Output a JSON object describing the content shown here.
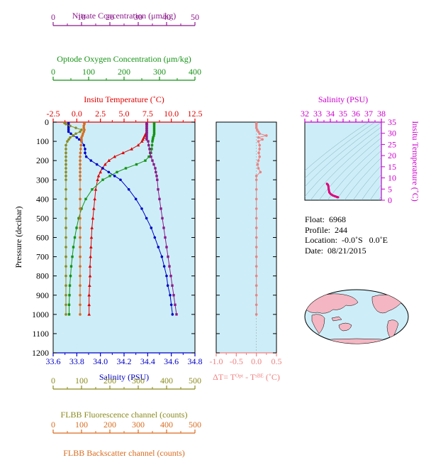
{
  "axes": {
    "nitrate": {
      "title": "Nitrate Concentration (μm/kg)",
      "ticks": [
        "0",
        "10",
        "20",
        "30",
        "40",
        "50"
      ],
      "range": [
        0,
        50
      ]
    },
    "oxygen": {
      "title": "Optode Oxygen Concentration (μm/kg)",
      "ticks": [
        "0",
        "100",
        "200",
        "300",
        "400"
      ],
      "range": [
        0,
        400
      ]
    },
    "temperature": {
      "title": "Insitu Temperature (˚C)",
      "ticks": [
        "-2.5",
        "0.0",
        "2.5",
        "5.0",
        "7.5",
        "10.0",
        "12.5"
      ],
      "range": [
        -2.5,
        12.5
      ]
    },
    "salinity": {
      "title": "Salinity (PSU)",
      "ticks": [
        "33.6",
        "33.8",
        "34.0",
        "34.2",
        "34.4",
        "34.6",
        "34.8"
      ],
      "range": [
        33.6,
        34.8
      ]
    },
    "pressure": {
      "title": "Pressure (decibar)",
      "ticks": [
        "0",
        "100",
        "200",
        "300",
        "400",
        "500",
        "600",
        "700",
        "800",
        "900",
        "1000",
        "1100",
        "1200"
      ],
      "range": [
        0,
        1200
      ]
    },
    "delta_t": {
      "title": "ΔT= Tᴼᵖᵗ - Tˢᴮᴱ (˚C)",
      "ticks": [
        "-1.0",
        "-0.5",
        "0.0",
        "0.5"
      ],
      "range": [
        -1.0,
        0.5
      ]
    },
    "fluorescence": {
      "title": "FLBB Fluorescence channel (counts)",
      "ticks": [
        "0",
        "100",
        "200",
        "300",
        "400",
        "500"
      ],
      "range": [
        0,
        500
      ]
    },
    "backscatter": {
      "title": "FLBB Backscatter channel (counts)",
      "ticks": [
        "0",
        "100",
        "200",
        "300",
        "400",
        "500"
      ],
      "range": [
        0,
        500
      ]
    },
    "ts_salinity": {
      "title": "Salinity (PSU)",
      "ticks": [
        "32",
        "33",
        "34",
        "35",
        "36",
        "37",
        "38"
      ],
      "range": [
        32,
        38
      ]
    },
    "ts_temperature": {
      "title": "Insitu Temperature (˚C)",
      "ticks": [
        "0",
        "5",
        "10",
        "15",
        "20",
        "25",
        "30",
        "35"
      ],
      "range": [
        0,
        35
      ]
    }
  },
  "info": {
    "float": "Float:  6968",
    "profile": "Profile:  244",
    "location": "Location:  -0.0˚S   0.0˚E",
    "date": "Date:  08/21/2015"
  },
  "colors": {
    "nitrate": "#8b1a8b",
    "oxygen": "#159315",
    "temperature": "#e00000",
    "salinity": "#0000c8",
    "fluorescence": "#8a8a1e",
    "backscatter": "#d96b1f",
    "delta_t": "#f08080",
    "ts_axis": "#cc00cc",
    "panel_bg": "#cdeef8"
  },
  "chart_data": {
    "type": "line",
    "y_axis": "pressure",
    "y_reversed": true,
    "pressure": [
      5,
      10,
      20,
      30,
      40,
      50,
      60,
      70,
      80,
      90,
      100,
      120,
      140,
      160,
      180,
      200,
      220,
      240,
      260,
      280,
      300,
      350,
      400,
      450,
      500,
      550,
      600,
      650,
      700,
      750,
      800,
      850,
      900,
      950,
      1000
    ],
    "series": [
      {
        "name": "temperature",
        "axis": "temperature",
        "values": [
          7.4,
          7.4,
          7.4,
          7.4,
          7.4,
          7.4,
          7.3,
          7.2,
          7.1,
          7.0,
          6.9,
          6.5,
          5.8,
          4.9,
          4.0,
          3.4,
          3.0,
          2.7,
          2.5,
          2.3,
          2.2,
          2.0,
          1.9,
          1.8,
          1.7,
          1.6,
          1.55,
          1.5,
          1.45,
          1.4,
          1.4,
          1.35,
          1.3,
          1.3,
          1.3
        ]
      },
      {
        "name": "salinity",
        "axis": "salinity",
        "values": [
          33.73,
          33.73,
          33.73,
          33.73,
          33.73,
          33.73,
          33.75,
          33.77,
          33.8,
          33.82,
          33.84,
          33.86,
          33.87,
          33.87,
          33.88,
          33.92,
          33.97,
          34.02,
          34.07,
          34.12,
          34.17,
          34.24,
          34.3,
          34.35,
          34.39,
          34.43,
          34.46,
          34.49,
          34.52,
          34.54,
          34.56,
          34.57,
          34.59,
          34.6,
          34.61
        ]
      },
      {
        "name": "oxygen",
        "axis": "oxygen",
        "values": [
          285,
          285,
          285,
          285,
          285,
          285,
          285,
          284,
          282,
          281,
          280,
          279,
          278,
          276,
          270,
          260,
          235,
          205,
          180,
          160,
          140,
          110,
          92,
          80,
          72,
          66,
          61,
          57,
          54,
          51,
          49,
          47,
          46,
          45,
          45
        ]
      },
      {
        "name": "nitrate",
        "axis": "nitrate",
        "values": [
          33,
          33,
          33,
          33,
          33,
          33,
          33,
          33,
          33,
          33,
          33.5,
          33.7,
          34,
          34.2,
          34.5,
          35,
          35.5,
          36,
          36.2,
          36.5,
          36.7,
          37,
          37.5,
          38,
          38.5,
          39,
          39.5,
          40,
          40.5,
          41,
          41.5,
          42,
          42.5,
          43,
          43.5
        ]
      },
      {
        "name": "fluorescence",
        "axis": "fluorescence",
        "values": [
          40,
          45,
          60,
          80,
          100,
          95,
          80,
          70,
          60,
          55,
          50,
          45,
          45,
          45,
          45,
          45,
          45,
          45,
          45,
          45,
          45,
          45,
          45,
          45,
          45,
          45,
          45,
          45,
          45,
          45,
          45,
          45,
          45,
          45,
          45
        ]
      },
      {
        "name": "backscatter",
        "axis": "backscatter",
        "values": [
          110,
          110,
          108,
          108,
          110,
          108,
          105,
          103,
          100,
          100,
          100,
          98,
          97,
          96,
          95,
          95,
          95,
          95,
          95,
          95,
          95,
          95,
          95,
          95,
          95,
          95,
          95,
          95,
          95,
          95,
          95,
          95,
          95,
          95,
          95
        ]
      },
      {
        "name": "delta_t",
        "axis": "delta_t",
        "values": [
          0.0,
          0.0,
          0.0,
          0.0,
          0.02,
          0.05,
          0.08,
          0.25,
          0.05,
          0.15,
          0.05,
          0.08,
          0.08,
          0.06,
          0.08,
          0.05,
          0.03,
          0.05,
          0.1,
          0.0,
          0.0,
          0.0,
          0.0,
          0.0,
          0.0,
          0.0,
          0.0,
          0.0,
          0.0,
          0.0,
          0.0,
          0.0,
          0.0,
          0.0,
          0.0
        ]
      }
    ],
    "ts_diagram": {
      "x_axis": "ts_salinity",
      "y_axis": "ts_temperature",
      "points": [
        [
          33.73,
          7.4
        ],
        [
          33.75,
          7.2
        ],
        [
          33.8,
          7.0
        ],
        [
          33.84,
          6.5
        ],
        [
          33.87,
          5.0
        ],
        [
          33.92,
          3.5
        ],
        [
          34.02,
          2.8
        ],
        [
          34.17,
          2.2
        ],
        [
          34.35,
          1.8
        ],
        [
          34.52,
          1.45
        ],
        [
          34.61,
          1.3
        ]
      ]
    }
  }
}
